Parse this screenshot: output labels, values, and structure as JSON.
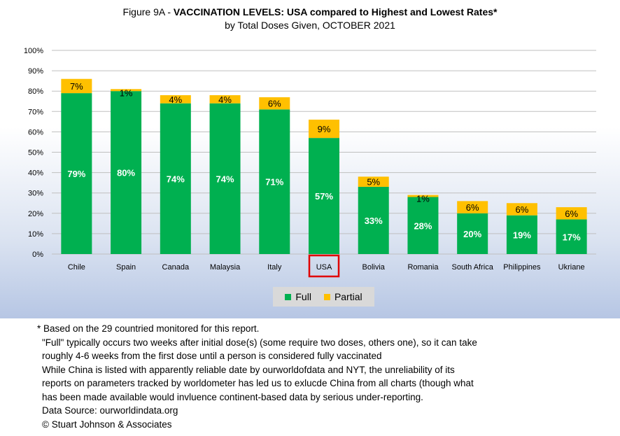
{
  "title": {
    "prefix": "Figure 9A - ",
    "bold": "VACCINATION LEVELS:  USA compared to Highest and Lowest Rates*",
    "subtitle": "by Total Doses Given, OCTOBER 2021"
  },
  "colors": {
    "full": "#00b050",
    "partial": "#ffc000",
    "highlight_box": "#e00000",
    "grid": "#bfbfbf"
  },
  "chart_data": {
    "type": "bar",
    "stacked": true,
    "categories": [
      "Chile",
      "Spain",
      "Canada",
      "Malaysia",
      "Italy",
      "USA",
      "Bolivia",
      "Romania",
      "South Africa",
      "Philippines",
      "Ukriane"
    ],
    "series": [
      {
        "name": "Full",
        "values": [
          79,
          80,
          74,
          74,
          71,
          57,
          33,
          28,
          20,
          19,
          17
        ],
        "labels": [
          "79%",
          "80%",
          "74%",
          "74%",
          "71%",
          "57%",
          "33%",
          "28%",
          "20%",
          "19%",
          "17%"
        ]
      },
      {
        "name": "Partial",
        "values": [
          7,
          1,
          4,
          4,
          6,
          9,
          5,
          1,
          6,
          6,
          6
        ],
        "labels": [
          "7%",
          "1%",
          "4%",
          "4%",
          "6%",
          "9%",
          "5%",
          "1%",
          "6%",
          "6%",
          "6%"
        ]
      }
    ],
    "y_ticks": [
      "0%",
      "10%",
      "20%",
      "30%",
      "40%",
      "50%",
      "60%",
      "70%",
      "80%",
      "90%",
      "100%"
    ],
    "ylim": [
      0,
      100
    ],
    "grid": true,
    "legend_position": "bottom",
    "highlighted_category": "USA"
  },
  "notes": {
    "line1": "* Based on the 29 countried monitored for this report.",
    "line2": "\"Full\" typically occurs two weeks after initial dose(s) (some require two doses, others one),  so it can take",
    "line3": "roughly 4-6 weeks from the first dose until a person is considered fully vaccinated",
    "line4": "While China is listed with apparently reliable date by ourworldofdata and NYT, the unreliability of its",
    "line5": "reports on parameters tracked by worldometer has led us to exlucde China from all charts (though what",
    "line6": "has been made available would invluence continent-based data by serious under-reporting.",
    "line7": "Data Source:  ourworldindata.org",
    "line8": "© Stuart Johnson & Associates"
  }
}
